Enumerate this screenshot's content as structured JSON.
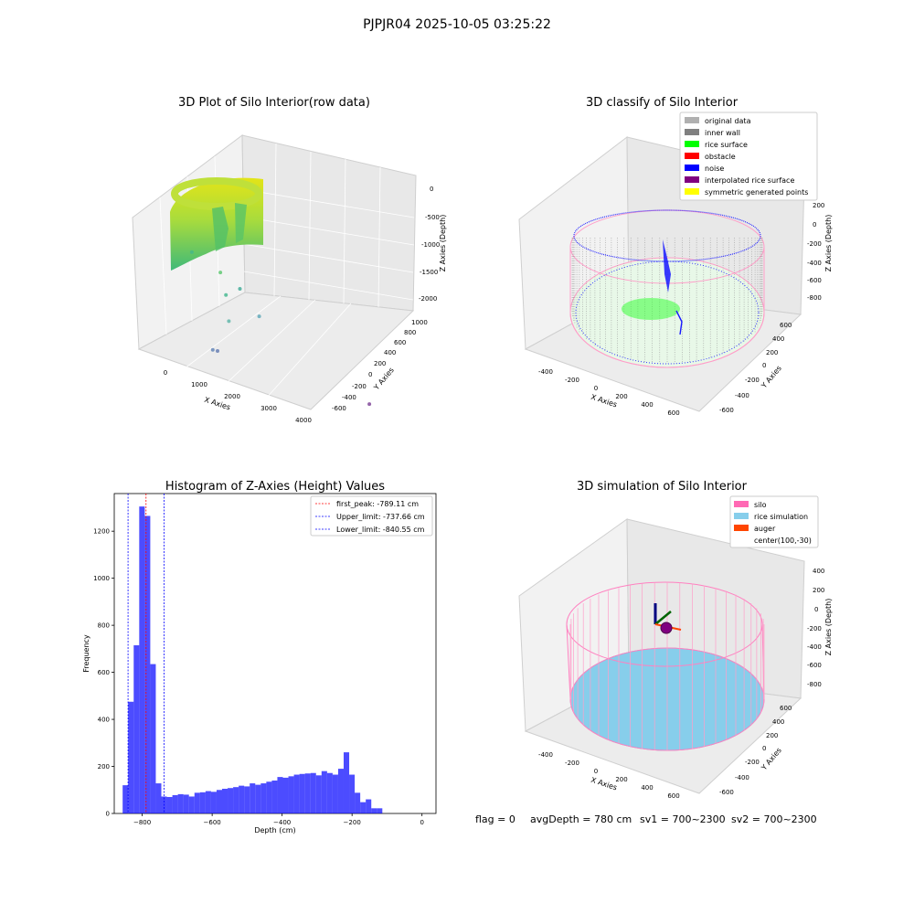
{
  "suptitle": "PJPJR04 2025-10-05 03:25:22",
  "status_line": {
    "flag": "flag = 0",
    "avg_depth": "avgDepth = 780 cm",
    "sv1": "sv1 = 700~2300",
    "sv2": "sv2 = 700~2300"
  },
  "chart_data": [
    {
      "type": "scatter",
      "projection": "3d",
      "title": "3D Plot of Silo Interior(row data)",
      "xlabel": "X Axies",
      "ylabel": "Y Axies",
      "zlabel": "Z Axies (Depth)",
      "x_ticks": [
        "0",
        "1000",
        "2000",
        "3000",
        "4000"
      ],
      "y_ticks": [
        "-600",
        "-400",
        "-200",
        "0",
        "200",
        "400",
        "600",
        "800",
        "1000"
      ],
      "z_ticks": [
        "0",
        "-500",
        "-1000",
        "-1500",
        "-2000"
      ],
      "colormap": "viridis",
      "points": [
        {
          "x": 700,
          "y": 300,
          "z": -700
        },
        {
          "x": 1300,
          "y": 300,
          "z": -900
        },
        {
          "x": 1100,
          "y": 0,
          "z": -1100
        },
        {
          "x": 1500,
          "y": 100,
          "z": -1000
        },
        {
          "x": 950,
          "y": -200,
          "z": -1400
        },
        {
          "x": 1800,
          "y": 0,
          "z": -1300
        },
        {
          "x": 400,
          "y": -400,
          "z": -1800
        },
        {
          "x": 500,
          "y": -400,
          "z": -1800
        },
        {
          "x": 3800,
          "y": -300,
          "z": -2100
        }
      ]
    },
    {
      "type": "scatter",
      "projection": "3d",
      "title": "3D classify of Silo Interior",
      "xlabel": "X Axies",
      "ylabel": "Y Axies",
      "zlabel": "Z Axies (Depth)",
      "x_ticks": [
        "-400",
        "-200",
        "0",
        "200",
        "400",
        "600"
      ],
      "y_ticks": [
        "-600",
        "-400",
        "-200",
        "0",
        "200",
        "400",
        "600"
      ],
      "z_ticks": [
        "200",
        "0",
        "-200",
        "-400",
        "-600",
        "-800"
      ],
      "legend": [
        {
          "label": "original data",
          "color": "#b0b0b0"
        },
        {
          "label": "inner wall",
          "color": "#808080"
        },
        {
          "label": "rice surface",
          "color": "#00ff00"
        },
        {
          "label": "obstacle",
          "color": "#ff0000"
        },
        {
          "label": "noise",
          "color": "#0000ff"
        },
        {
          "label": "interpolated rice surface",
          "color": "#800080"
        },
        {
          "label": "symmetric generated points",
          "color": "#ffff00"
        }
      ]
    },
    {
      "type": "bar",
      "title": "Histogram of Z-Axies (Height) Values",
      "xlabel": "Depth (cm)",
      "ylabel": "Frequency",
      "xlim": [
        -880,
        40
      ],
      "ylim": [
        0,
        1360
      ],
      "x_ticks": [
        -800,
        -600,
        -400,
        -200,
        0
      ],
      "y_ticks": [
        0,
        200,
        400,
        600,
        800,
        1000,
        1200
      ],
      "bin_width": 15.8,
      "bin_start": -856,
      "bar_color": "#0000ff",
      "values": [
        120,
        475,
        715,
        1305,
        1265,
        635,
        128,
        72,
        70,
        78,
        82,
        80,
        72,
        88,
        90,
        95,
        92,
        100,
        105,
        108,
        112,
        118,
        115,
        128,
        122,
        128,
        135,
        140,
        155,
        152,
        158,
        165,
        168,
        170,
        172,
        162,
        180,
        172,
        165,
        190,
        260,
        165,
        88,
        48,
        60,
        22,
        22
      ],
      "vlines": [
        {
          "label": "first_peak: -789.11 cm",
          "x": -789.11,
          "color": "#ff0000"
        },
        {
          "label": "Upper_limit: -737.66 cm",
          "x": -737.66,
          "color": "#0000ff"
        },
        {
          "label": "Lower_limit: -840.55 cm",
          "x": -840.55,
          "color": "#0000ff"
        }
      ],
      "legend_position": "top-right"
    },
    {
      "type": "scatter",
      "projection": "3d",
      "title": "3D simulation of Silo Interior",
      "xlabel": "X Axies",
      "ylabel": "Y Axies",
      "zlabel": "Z Axies (Depth)",
      "x_ticks": [
        "-400",
        "-200",
        "0",
        "200",
        "400",
        "600"
      ],
      "y_ticks": [
        "-600",
        "-400",
        "-200",
        "0",
        "200",
        "400",
        "600"
      ],
      "z_ticks": [
        "400",
        "200",
        "0",
        "-200",
        "-400",
        "-600",
        "-800"
      ],
      "legend": [
        {
          "label": "silo",
          "color": "#ff69b4"
        },
        {
          "label": "rice simulation",
          "color": "#87ceeb"
        },
        {
          "label": "auger",
          "color": "#ff4500"
        },
        {
          "label": "center(100,-30)",
          "color": "#800080"
        }
      ]
    }
  ]
}
